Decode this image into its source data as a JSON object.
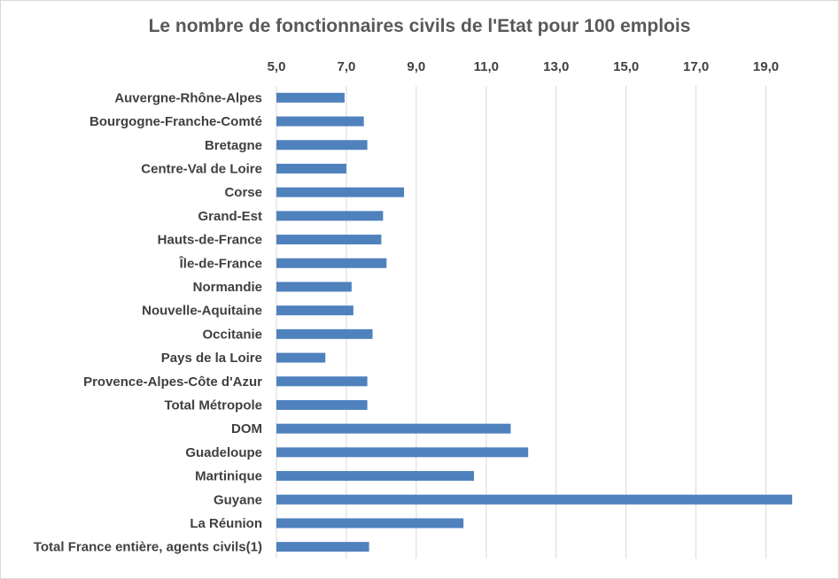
{
  "chart_data": {
    "type": "bar",
    "orientation": "horizontal",
    "title": "Le nombre de fonctionnaires civils de l'Etat pour 100 emplois",
    "xlabel": "",
    "ylabel": "",
    "xlim": [
      5.0,
      20.0
    ],
    "ticks": [
      "5,0",
      "7,0",
      "9,0",
      "11,0",
      "13,0",
      "15,0",
      "17,0",
      "19,0"
    ],
    "tick_values": [
      5,
      7,
      9,
      11,
      13,
      15,
      17,
      19
    ],
    "axis_position": "top",
    "grid": true,
    "bar_color": "#4f81bd",
    "grid_color": "#d9d9d9",
    "categories": [
      "Auvergne-Rhône-Alpes",
      "Bourgogne-Franche-Comté",
      "Bretagne",
      "Centre-Val de Loire",
      "Corse",
      "Grand-Est",
      "Hauts-de-France",
      "Île-de-France",
      "Normandie",
      "Nouvelle-Aquitaine",
      "Occitanie",
      "Pays de la Loire",
      "Provence-Alpes-Côte d'Azur",
      "Total Métropole",
      "DOM",
      "Guadeloupe",
      "Martinique",
      "Guyane",
      "La Réunion",
      "Total France entière, agents civils(1)"
    ],
    "values": [
      6.95,
      7.5,
      7.6,
      7.0,
      8.65,
      8.05,
      8.0,
      8.15,
      7.15,
      7.2,
      7.75,
      6.4,
      7.6,
      7.6,
      11.7,
      12.2,
      10.65,
      19.75,
      10.35,
      7.65
    ]
  }
}
